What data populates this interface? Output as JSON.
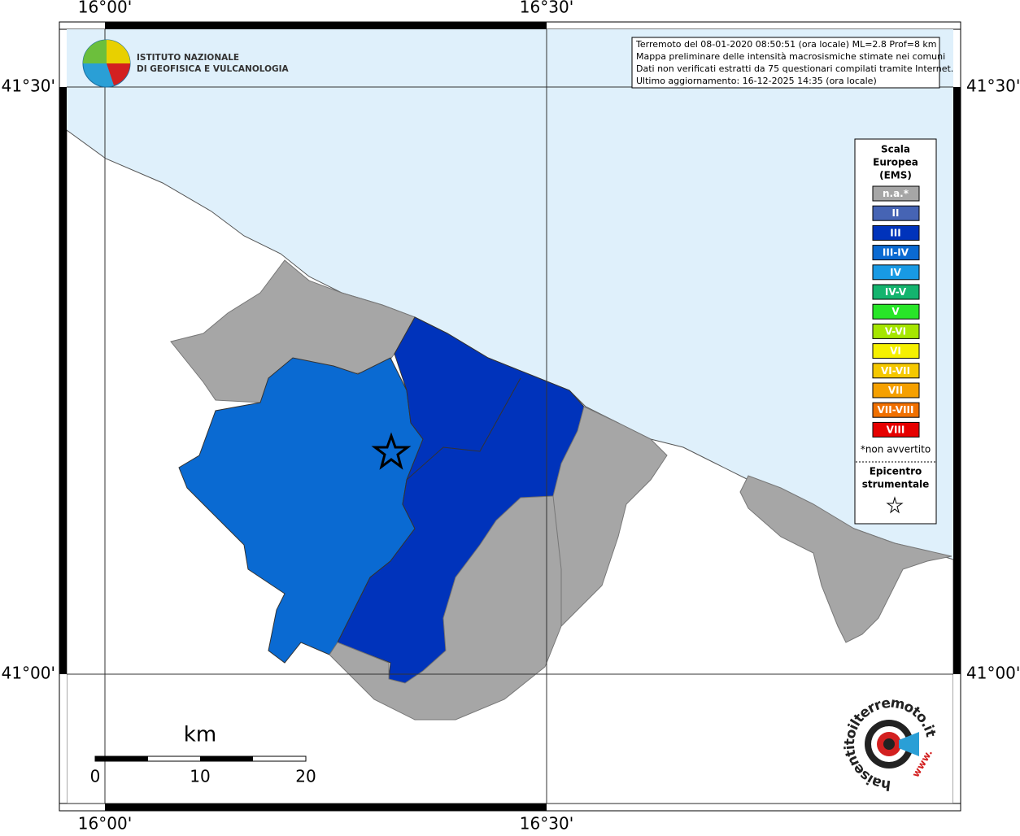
{
  "grid_labels": {
    "lon": [
      "16°00'",
      "16°30'"
    ],
    "lat": [
      "41°30'",
      "41°00'"
    ]
  },
  "logo": {
    "line1": "ISTITUTO NAZIONALE",
    "line2": "DI GEOFISICA E VULCANOLOGIA"
  },
  "info": [
    "Terremoto del 08-01-2020 08:50:51 (ora locale) ML=2.8 Prof=8 km",
    "Mappa preliminare delle intensità macrosismiche stimate nei comuni",
    "Dati non verificati estratti da 75 questionari compilati tramite Internet.",
    "Ultimo aggiornamento: 16-12-2025 14:35 (ora locale)"
  ],
  "legend": {
    "title": [
      "Scala",
      "Europea",
      "(EMS)"
    ],
    "items": [
      {
        "label": "n.a.*",
        "color": "#a6a6a6"
      },
      {
        "label": "II",
        "color": "#4664b4"
      },
      {
        "label": "III",
        "color": "#0033bb"
      },
      {
        "label": "III-IV",
        "color": "#0a6ad2"
      },
      {
        "label": "IV",
        "color": "#189ae4"
      },
      {
        "label": "IV-V",
        "color": "#14b46e"
      },
      {
        "label": "V",
        "color": "#28e628"
      },
      {
        "label": "V-VI",
        "color": "#a6e600"
      },
      {
        "label": "VI",
        "color": "#f5f000"
      },
      {
        "label": "VI-VII",
        "color": "#f5c800"
      },
      {
        "label": "VII",
        "color": "#f5a000"
      },
      {
        "label": "VII-VIII",
        "color": "#f07000"
      },
      {
        "label": "VIII",
        "color": "#e60000"
      }
    ],
    "note": "*non avvertito",
    "epicenter": [
      "Epicentro",
      "strumentale"
    ]
  },
  "scale_bar": {
    "unit": "km",
    "labels": [
      "0",
      "10",
      "20"
    ]
  },
  "brand": {
    "name": "haisentitoilterremoto.it",
    "prefix": "www."
  }
}
